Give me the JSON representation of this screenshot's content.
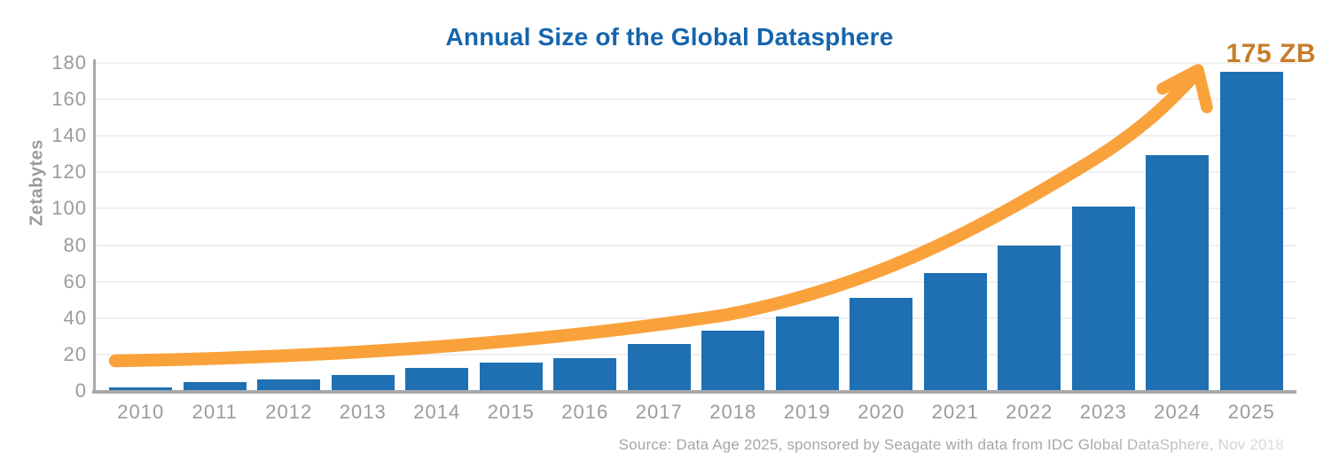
{
  "title": {
    "text": "Annual Size of the Global Datasphere"
  },
  "annotation": {
    "label": "175 ZB"
  },
  "source": {
    "text": "Source: Data Age 2025, sponsored by Seagate with data from IDC Global DataSphere, Nov 2018"
  },
  "colors": {
    "bar": "#1F70B2",
    "title": "#1565AE",
    "trend_arrow": "#F9A23C",
    "annotation": "#C87C28",
    "axis_line": "#A9A9A9",
    "gridline": "#F0F0F0",
    "tick_text": "#9B9B9B",
    "source_text": "#A6A6A6"
  },
  "chart_data": {
    "type": "bar",
    "title": "Annual Size of the Global Datasphere",
    "xlabel": "",
    "ylabel": "Zetabytes",
    "categories": [
      "2010",
      "2011",
      "2012",
      "2013",
      "2014",
      "2015",
      "2016",
      "2017",
      "2018",
      "2019",
      "2020",
      "2021",
      "2022",
      "2023",
      "2024",
      "2025"
    ],
    "values": [
      2,
      5,
      6.5,
      9,
      12.5,
      15.5,
      18,
      26,
      33,
      41,
      51,
      64.5,
      80,
      101,
      129.5,
      175
    ],
    "ylim": [
      0,
      180
    ],
    "y_tick_step": 20,
    "grid": true,
    "legend": false,
    "annotations": [
      {
        "type": "curved-arrow",
        "note": "orange exponential trend arrow from 2010 baseline to 2025 peak"
      },
      {
        "type": "text",
        "text": "175 ZB",
        "position": "top-right"
      }
    ]
  }
}
